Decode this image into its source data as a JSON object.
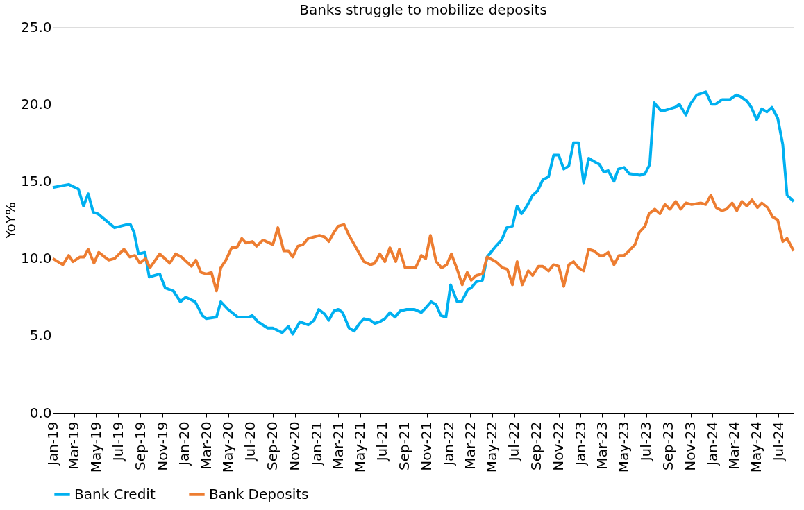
{
  "chart_data": {
    "type": "line",
    "title": "Banks struggle to mobilize deposits",
    "ylabel": "YoY%",
    "xlim": [
      "2019-01-01",
      "2024-08-12"
    ],
    "xticks": [
      {
        "value": "2019-01-01",
        "label": "Jan-19"
      },
      {
        "value": "2019-03-01",
        "label": "Mar-19"
      },
      {
        "value": "2019-05-01",
        "label": "May-19"
      },
      {
        "value": "2019-07-01",
        "label": "Jul-19"
      },
      {
        "value": "2019-09-01",
        "label": "Sep-19"
      },
      {
        "value": "2019-11-01",
        "label": "Nov-19"
      },
      {
        "value": "2020-01-01",
        "label": "Jan-20"
      },
      {
        "value": "2020-03-01",
        "label": "Mar-20"
      },
      {
        "value": "2020-05-01",
        "label": "May-20"
      },
      {
        "value": "2020-07-01",
        "label": "Jul-20"
      },
      {
        "value": "2020-09-01",
        "label": "Sep-20"
      },
      {
        "value": "2020-11-01",
        "label": "Nov-20"
      },
      {
        "value": "2021-01-01",
        "label": "Jan-21"
      },
      {
        "value": "2021-03-01",
        "label": "Mar-21"
      },
      {
        "value": "2021-05-01",
        "label": "May-21"
      },
      {
        "value": "2021-07-01",
        "label": "Jul-21"
      },
      {
        "value": "2021-09-01",
        "label": "Sep-21"
      },
      {
        "value": "2021-11-01",
        "label": "Nov-21"
      },
      {
        "value": "2022-01-01",
        "label": "Jan-22"
      },
      {
        "value": "2022-03-01",
        "label": "Mar-22"
      },
      {
        "value": "2022-05-01",
        "label": "May-22"
      },
      {
        "value": "2022-07-01",
        "label": "Jul-22"
      },
      {
        "value": "2022-09-01",
        "label": "Sep-22"
      },
      {
        "value": "2022-11-01",
        "label": "Nov-22"
      },
      {
        "value": "2023-01-01",
        "label": "Jan-23"
      },
      {
        "value": "2023-03-01",
        "label": "Mar-23"
      },
      {
        "value": "2023-05-01",
        "label": "May-23"
      },
      {
        "value": "2023-07-01",
        "label": "Jul-23"
      },
      {
        "value": "2023-09-01",
        "label": "Sep-23"
      },
      {
        "value": "2023-11-01",
        "label": "Nov-23"
      },
      {
        "value": "2024-01-01",
        "label": "Jan-24"
      },
      {
        "value": "2024-03-01",
        "label": "Mar-24"
      },
      {
        "value": "2024-05-01",
        "label": "May-24"
      },
      {
        "value": "2024-07-01",
        "label": "Jul-24"
      }
    ],
    "ylim": [
      0,
      25
    ],
    "yticks": [
      {
        "value": 0,
        "label": "0.0"
      },
      {
        "value": 5,
        "label": "5.0"
      },
      {
        "value": 10,
        "label": "10.0"
      },
      {
        "value": 15,
        "label": "15.0"
      },
      {
        "value": 20,
        "label": "20.0"
      },
      {
        "value": 25,
        "label": "25.0"
      }
    ],
    "grid": false,
    "legend": "bottom",
    "marker": "none",
    "line_style": "solid",
    "series": [
      {
        "name": "Bank Credit",
        "color": "#00b0f0",
        "x": [
          "2019-01-01",
          "2019-02-14",
          "2019-03-13",
          "2019-03-27",
          "2019-04-09",
          "2019-04-23",
          "2019-05-06",
          "2019-06-21",
          "2019-07-25",
          "2019-08-04",
          "2019-08-14",
          "2019-08-26",
          "2019-09-13",
          "2019-09-25",
          "2019-10-24",
          "2019-11-08",
          "2019-12-01",
          "2019-12-20",
          "2020-01-04",
          "2020-01-30",
          "2020-02-19",
          "2020-03-01",
          "2020-03-29",
          "2020-04-10",
          "2020-04-30",
          "2020-05-27",
          "2020-06-26",
          "2020-07-06",
          "2020-07-22",
          "2020-08-17",
          "2020-09-01",
          "2020-09-27",
          "2020-10-14",
          "2020-10-26",
          "2020-11-15",
          "2020-12-08",
          "2020-12-24",
          "2021-01-06",
          "2021-01-22",
          "2021-02-03",
          "2021-02-17",
          "2021-03-01",
          "2021-03-13",
          "2021-03-31",
          "2021-04-14",
          "2021-04-29",
          "2021-05-11",
          "2021-05-29",
          "2021-06-10",
          "2021-06-24",
          "2021-07-08",
          "2021-07-22",
          "2021-08-05",
          "2021-08-19",
          "2021-09-06",
          "2021-09-28",
          "2021-10-17",
          "2021-10-29",
          "2021-11-13",
          "2021-11-27",
          "2021-12-10",
          "2021-12-24",
          "2022-01-06",
          "2022-01-24",
          "2022-02-05",
          "2022-02-23",
          "2022-03-04",
          "2022-03-18",
          "2022-04-04",
          "2022-04-17",
          "2022-05-11",
          "2022-05-27",
          "2022-06-10",
          "2022-06-26",
          "2022-07-09",
          "2022-07-21",
          "2022-08-05",
          "2022-08-21",
          "2022-09-04",
          "2022-09-18",
          "2022-10-04",
          "2022-10-18",
          "2022-11-01",
          "2022-11-15",
          "2022-11-29",
          "2022-12-12",
          "2022-12-26",
          "2023-01-09",
          "2023-01-23",
          "2023-02-06",
          "2023-02-22",
          "2023-03-06",
          "2023-03-18",
          "2023-04-03",
          "2023-04-15",
          "2023-05-01",
          "2023-05-15",
          "2023-06-14",
          "2023-06-28",
          "2023-07-11",
          "2023-07-23",
          "2023-08-10",
          "2023-08-22",
          "2023-09-19",
          "2023-10-01",
          "2023-10-19",
          "2023-10-31",
          "2023-11-18",
          "2023-12-13",
          "2023-12-29",
          "2024-01-09",
          "2024-01-27",
          "2024-02-17",
          "2024-03-06",
          "2024-03-18",
          "2024-04-05",
          "2024-04-17",
          "2024-05-02",
          "2024-05-16",
          "2024-05-30",
          "2024-06-13",
          "2024-06-29",
          "2024-07-13",
          "2024-07-25",
          "2024-08-12"
        ],
        "values": [
          14.6,
          14.8,
          14.5,
          13.4,
          14.2,
          13.0,
          12.9,
          12.0,
          12.2,
          12.2,
          11.7,
          10.3,
          10.4,
          8.8,
          9.0,
          8.1,
          7.9,
          7.2,
          7.5,
          7.2,
          6.3,
          6.1,
          6.2,
          7.2,
          6.7,
          6.2,
          6.2,
          6.3,
          5.9,
          5.5,
          5.5,
          5.2,
          5.6,
          5.1,
          5.9,
          5.7,
          6.0,
          6.7,
          6.4,
          6.0,
          6.6,
          6.7,
          6.5,
          5.5,
          5.3,
          5.8,
          6.1,
          6.0,
          5.8,
          5.9,
          6.1,
          6.5,
          6.2,
          6.6,
          6.7,
          6.7,
          6.5,
          6.8,
          7.2,
          7.0,
          6.3,
          6.2,
          8.3,
          7.2,
          7.2,
          8.0,
          8.1,
          8.5,
          8.6,
          10.1,
          10.8,
          11.2,
          12.0,
          12.1,
          13.4,
          12.9,
          13.4,
          14.1,
          14.4,
          15.1,
          15.3,
          16.7,
          16.7,
          15.8,
          16.0,
          17.5,
          17.5,
          14.9,
          16.5,
          16.3,
          16.1,
          15.6,
          15.7,
          15.0,
          15.8,
          15.9,
          15.5,
          15.4,
          15.5,
          16.1,
          20.1,
          19.6,
          19.6,
          19.8,
          20.0,
          19.3,
          20.0,
          20.6,
          20.8,
          20.0,
          20.0,
          20.3,
          20.3,
          20.6,
          20.5,
          20.2,
          19.8,
          19.0,
          19.7,
          19.5,
          19.8,
          19.1,
          17.4,
          14.1,
          13.7
        ]
      },
      {
        "name": "Bank Deposits",
        "color": "#ed7d31",
        "x": [
          "2019-01-01",
          "2019-01-29",
          "2019-02-14",
          "2019-02-26",
          "2019-03-17",
          "2019-03-29",
          "2019-04-09",
          "2019-04-25",
          "2019-05-08",
          "2019-06-05",
          "2019-06-21",
          "2019-07-17",
          "2019-08-02",
          "2019-08-16",
          "2019-08-30",
          "2019-09-15",
          "2019-09-27",
          "2019-10-24",
          "2019-11-21",
          "2019-12-07",
          "2019-12-23",
          "2020-01-20",
          "2020-02-01",
          "2020-02-15",
          "2020-03-01",
          "2020-03-15",
          "2020-03-29",
          "2020-04-10",
          "2020-04-24",
          "2020-05-10",
          "2020-05-24",
          "2020-06-07",
          "2020-06-19",
          "2020-07-06",
          "2020-07-18",
          "2020-08-05",
          "2020-09-01",
          "2020-09-15",
          "2020-10-01",
          "2020-10-14",
          "2020-10-26",
          "2020-11-09",
          "2020-11-23",
          "2020-12-08",
          "2020-12-24",
          "2021-01-08",
          "2021-01-22",
          "2021-02-03",
          "2021-02-17",
          "2021-03-01",
          "2021-03-17",
          "2021-03-31",
          "2021-04-12",
          "2021-04-29",
          "2021-05-11",
          "2021-05-29",
          "2021-06-10",
          "2021-06-24",
          "2021-07-08",
          "2021-07-22",
          "2021-08-07",
          "2021-08-17",
          "2021-09-02",
          "2021-09-16",
          "2021-10-01",
          "2021-10-17",
          "2021-10-29",
          "2021-11-11",
          "2021-11-27",
          "2021-12-12",
          "2021-12-26",
          "2022-01-08",
          "2022-01-24",
          "2022-02-07",
          "2022-02-21",
          "2022-03-04",
          "2022-03-18",
          "2022-04-04",
          "2022-04-17",
          "2022-05-11",
          "2022-05-30",
          "2022-06-12",
          "2022-06-26",
          "2022-07-09",
          "2022-07-23",
          "2022-08-09",
          "2022-08-21",
          "2022-09-06",
          "2022-09-18",
          "2022-10-04",
          "2022-10-18",
          "2022-11-01",
          "2022-11-15",
          "2022-11-29",
          "2022-12-12",
          "2022-12-26",
          "2023-01-09",
          "2023-01-23",
          "2023-02-06",
          "2023-02-22",
          "2023-03-06",
          "2023-03-18",
          "2023-04-03",
          "2023-04-17",
          "2023-05-01",
          "2023-05-15",
          "2023-05-31",
          "2023-06-12",
          "2023-06-28",
          "2023-07-09",
          "2023-07-25",
          "2023-08-08",
          "2023-08-22",
          "2023-09-05",
          "2023-09-21",
          "2023-10-05",
          "2023-10-19",
          "2023-11-04",
          "2023-11-30",
          "2023-12-13",
          "2023-12-27",
          "2024-01-11",
          "2024-01-27",
          "2024-02-08",
          "2024-02-24",
          "2024-03-08",
          "2024-03-22",
          "2024-04-05",
          "2024-04-19",
          "2024-05-04",
          "2024-05-16",
          "2024-06-01",
          "2024-06-15",
          "2024-06-29",
          "2024-07-13",
          "2024-07-25",
          "2024-08-12"
        ],
        "values": [
          10.0,
          9.6,
          10.2,
          9.8,
          10.1,
          10.1,
          10.6,
          9.7,
          10.4,
          9.9,
          10.0,
          10.6,
          10.1,
          10.2,
          9.7,
          10.0,
          9.4,
          10.3,
          9.7,
          10.3,
          10.1,
          9.5,
          9.9,
          9.1,
          9.0,
          9.1,
          7.9,
          9.4,
          9.9,
          10.7,
          10.7,
          11.3,
          11.0,
          11.1,
          10.8,
          11.2,
          10.9,
          12.0,
          10.5,
          10.5,
          10.1,
          10.8,
          10.9,
          11.3,
          11.4,
          11.5,
          11.4,
          11.1,
          11.7,
          12.1,
          12.2,
          11.5,
          11.0,
          10.3,
          9.8,
          9.6,
          9.7,
          10.3,
          9.8,
          10.7,
          9.8,
          10.6,
          9.4,
          9.4,
          9.4,
          10.2,
          10.0,
          11.5,
          9.8,
          9.4,
          9.6,
          10.3,
          9.3,
          8.3,
          9.1,
          8.6,
          8.9,
          9.0,
          10.1,
          9.8,
          9.4,
          9.3,
          8.3,
          9.8,
          8.3,
          9.2,
          8.9,
          9.5,
          9.5,
          9.2,
          9.6,
          9.5,
          8.2,
          9.6,
          9.8,
          9.4,
          9.2,
          10.6,
          10.5,
          10.2,
          10.2,
          10.4,
          9.6,
          10.2,
          10.2,
          10.5,
          10.9,
          11.7,
          12.1,
          12.9,
          13.2,
          12.9,
          13.5,
          13.2,
          13.7,
          13.2,
          13.6,
          13.5,
          13.6,
          13.5,
          14.1,
          13.3,
          13.1,
          13.2,
          13.6,
          13.1,
          13.7,
          13.4,
          13.8,
          13.3,
          13.6,
          13.3,
          12.7,
          12.5,
          11.1,
          11.3,
          10.5
        ]
      }
    ]
  }
}
